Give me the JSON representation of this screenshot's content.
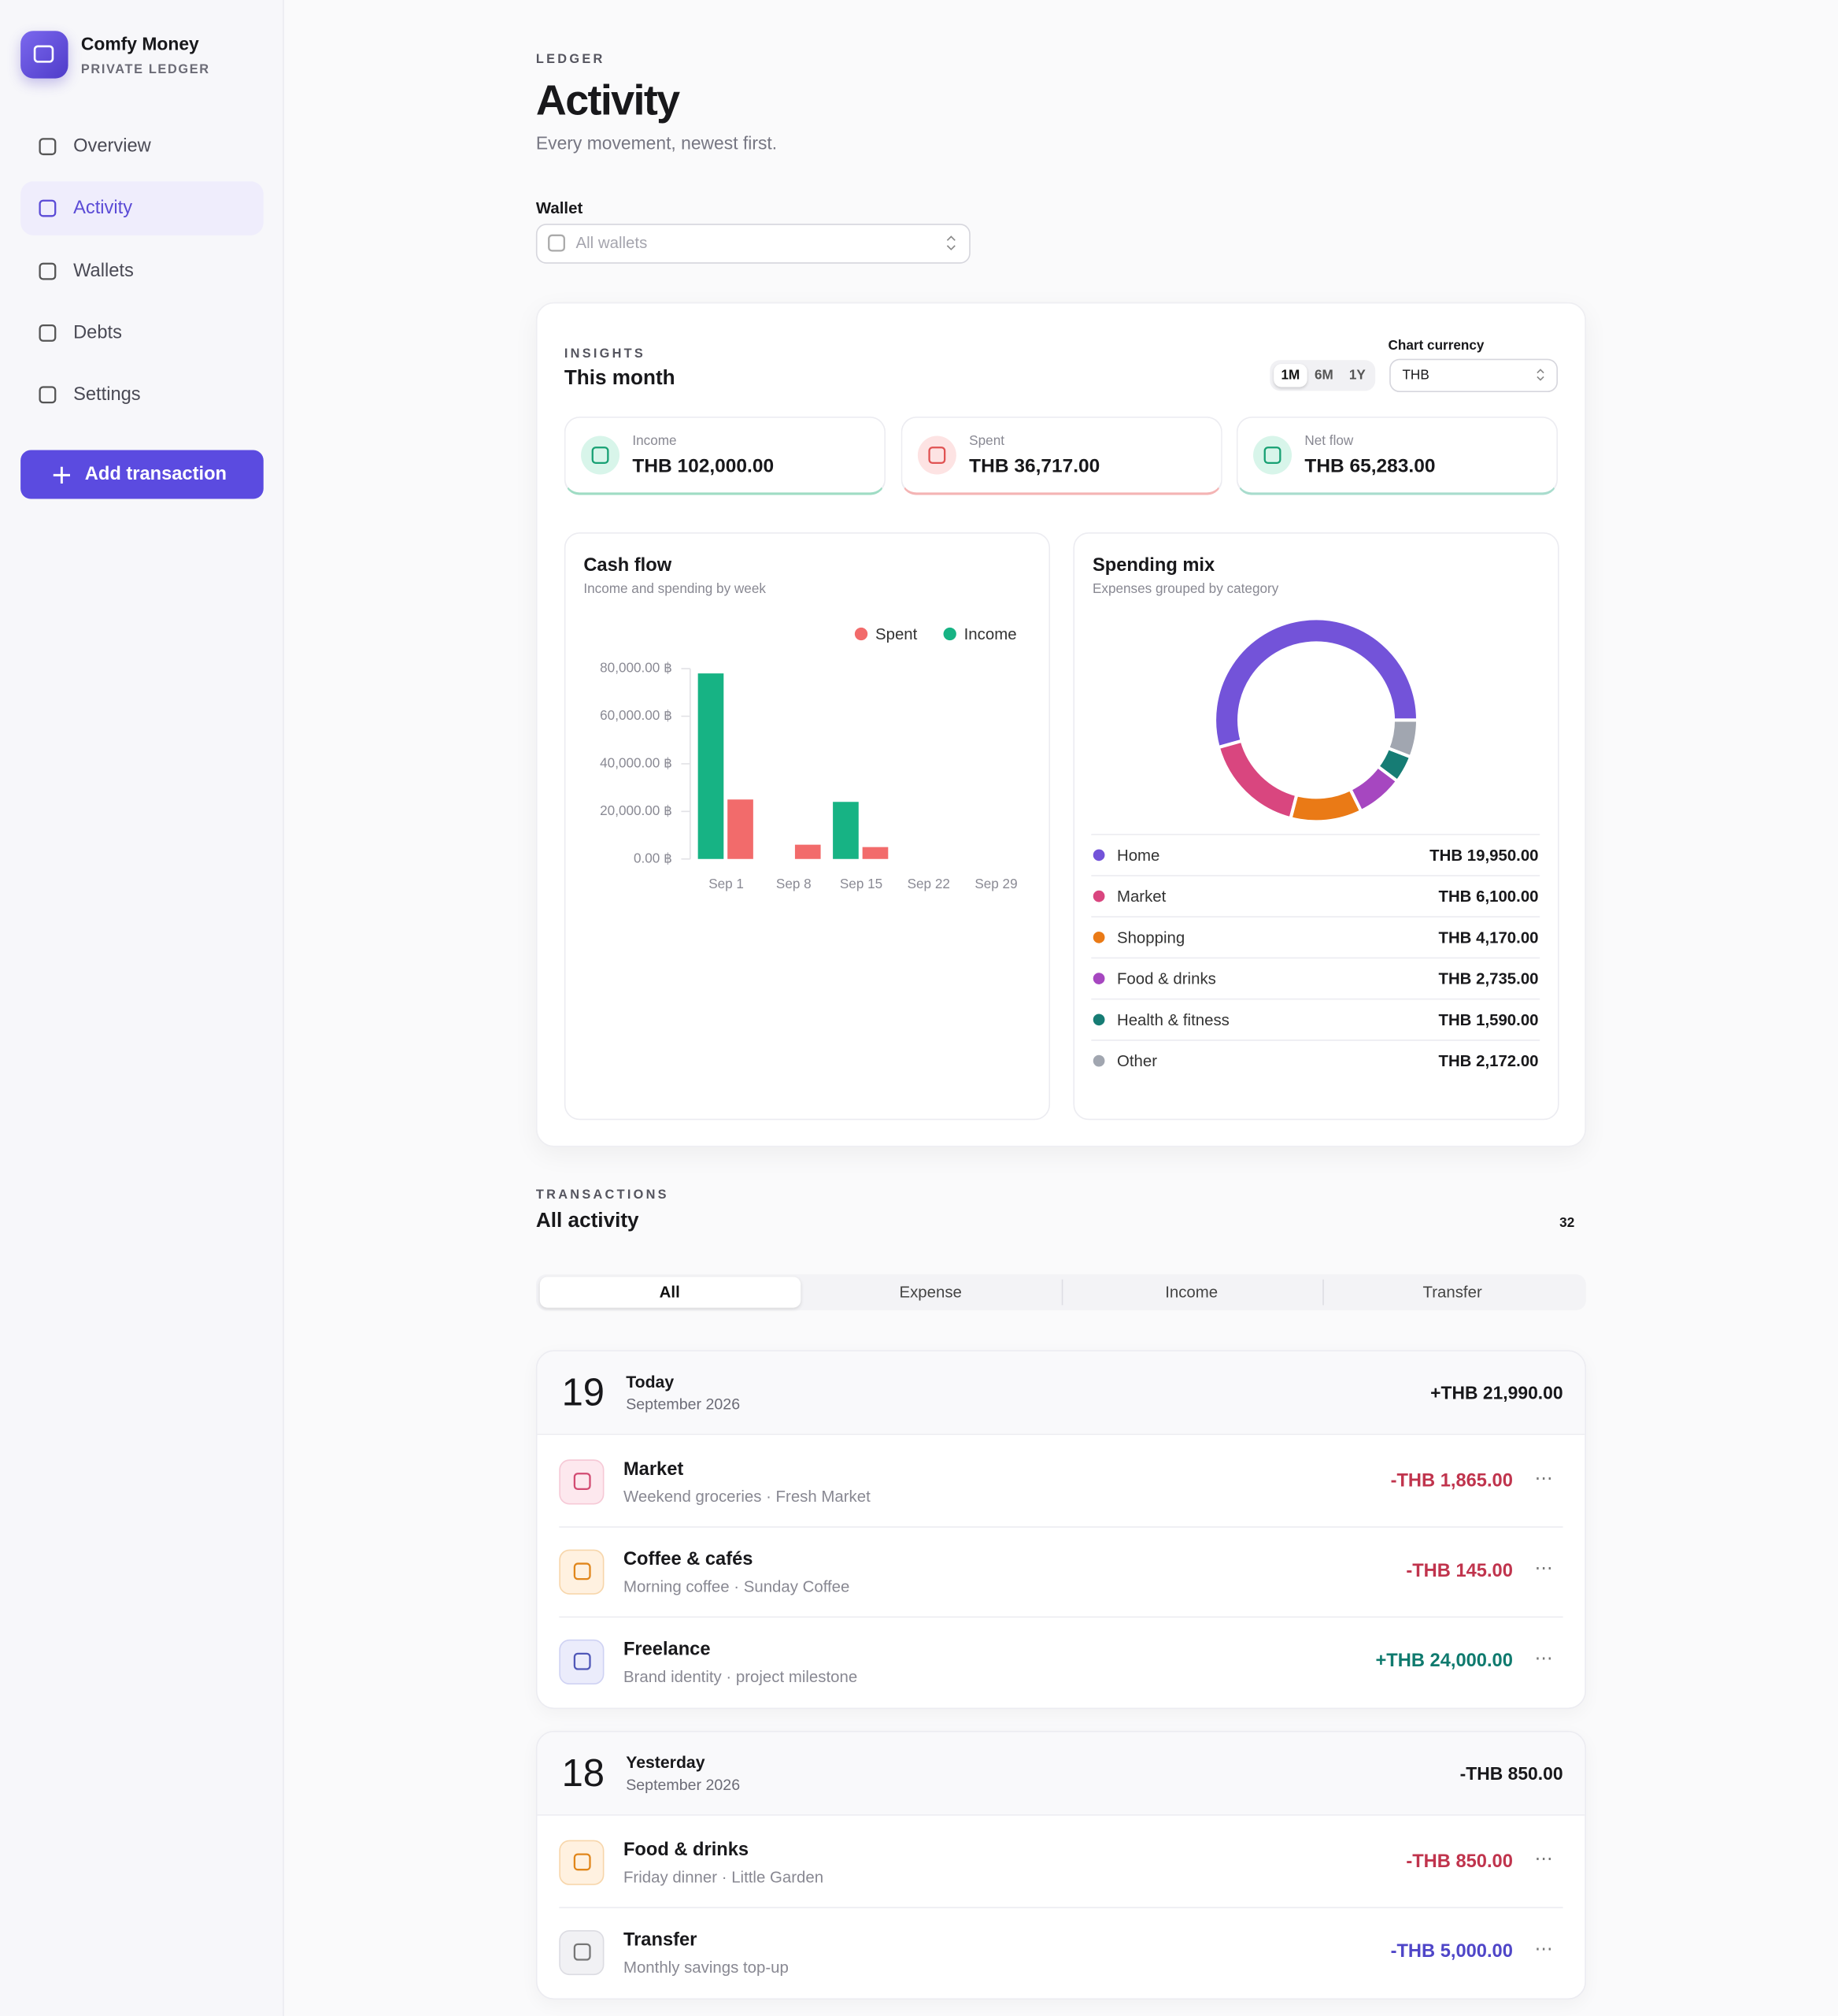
{
  "app": {
    "name": "Comfy Money",
    "tagline": "PRIVATE LEDGER"
  },
  "nav": {
    "items": [
      "Overview",
      "Activity",
      "Wallets",
      "Debts",
      "Settings"
    ],
    "action": "Add transaction"
  },
  "header": {
    "eyebrow": "LEDGER",
    "title": "Activity",
    "subtitle": "Every movement, newest first."
  },
  "wallet_filter": {
    "label": "Wallet",
    "value": "All wallets"
  },
  "insights": {
    "eyebrow": "INSIGHTS",
    "title": "This month",
    "ranges": [
      "1M",
      "6M",
      "1Y"
    ],
    "currency_label": "Chart currency",
    "currency": "THB",
    "stats": [
      {
        "label": "Income",
        "value": "THB 102,000.00"
      },
      {
        "label": "Spent",
        "value": "THB 36,717.00"
      },
      {
        "label": "Net flow",
        "value": "THB 65,283.00"
      }
    ]
  },
  "chart_data": [
    {
      "type": "bar",
      "title": "Cash flow",
      "subtitle": "Income and spending by week",
      "categories": [
        "Sep 1",
        "Sep 8",
        "Sep 15",
        "Sep 22",
        "Sep 29"
      ],
      "series": [
        {
          "name": "Spent",
          "color": "#f26b6b",
          "values": [
            25000,
            6000,
            5000,
            0,
            0
          ]
        },
        {
          "name": "Income",
          "color": "#17b384",
          "values": [
            78000,
            0,
            24000,
            0,
            0
          ]
        }
      ],
      "ylim": [
        0,
        80000
      ],
      "yticks": [
        {
          "value": 0,
          "label": "0.00 ฿"
        },
        {
          "value": 20000,
          "label": "20,000.00 ฿"
        },
        {
          "value": 40000,
          "label": "40,000.00 ฿"
        },
        {
          "value": 60000,
          "label": "60,000.00 ฿"
        },
        {
          "value": 80000,
          "label": "80,000.00 ฿"
        }
      ],
      "legend": "top-right"
    },
    {
      "type": "pie",
      "title": "Spending mix",
      "subtitle": "Expenses grouped by category",
      "categories": [
        "Home",
        "Market",
        "Shopping",
        "Food & drinks",
        "Health & fitness",
        "Other"
      ],
      "values": [
        19950,
        6100,
        4170,
        2735,
        1590,
        2172
      ],
      "value_labels": [
        "THB 19,950.00",
        "THB 6,100.00",
        "THB 4,170.00",
        "THB 2,735.00",
        "THB 1,590.00",
        "THB 2,172.00"
      ],
      "colors": [
        "#7353d9",
        "#d9467f",
        "#ea7a16",
        "#a647c0",
        "#167c74",
        "#a1a6b0"
      ]
    }
  ],
  "transactions": {
    "eyebrow": "TRANSACTIONS",
    "title": "All activity",
    "count": 32,
    "tabs": [
      "All",
      "Expense",
      "Income",
      "Transfer"
    ],
    "groups": [
      {
        "day": "19",
        "label": "Today",
        "month": "September 2026",
        "total": "+THB 21,990.00",
        "items": [
          {
            "title": "Market",
            "detail": "Weekend groceries · Fresh Market",
            "amount": "-THB 1,865.00"
          },
          {
            "title": "Coffee & cafés",
            "detail": "Morning coffee · Sunday Coffee",
            "amount": "-THB 145.00"
          },
          {
            "title": "Freelance",
            "detail": "Brand identity · project milestone",
            "amount": "+THB 24,000.00"
          }
        ]
      },
      {
        "day": "18",
        "label": "Yesterday",
        "month": "September 2026",
        "total": "-THB 850.00",
        "items": [
          {
            "title": "Food & drinks",
            "detail": "Friday dinner · Little Garden",
            "amount": "-THB 850.00"
          },
          {
            "title": "Transfer",
            "detail": "Monthly savings top-up",
            "amount": "-THB 5,000.00"
          }
        ]
      }
    ]
  }
}
